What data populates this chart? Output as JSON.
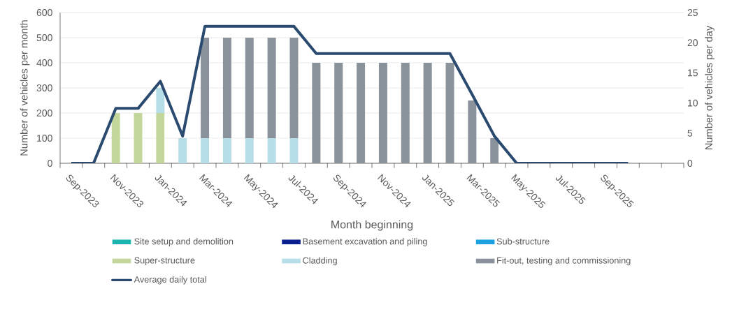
{
  "chart_data": {
    "type": "bar",
    "stacked": true,
    "xlabel": "Month beginning",
    "ylabel": "Number of vehicles per month",
    "y2label": "Number of vehicles per day",
    "categories": [
      "Sep-2023",
      null,
      "Nov-2023",
      null,
      "Jan-2024",
      null,
      "Mar-2024",
      null,
      "May-2024",
      null,
      "Jul-2024",
      null,
      "Sep-2024",
      null,
      "Nov-2024",
      null,
      "Jan-2025",
      null,
      "Mar-2025",
      null,
      "May-2025",
      null,
      "Jul-2025",
      null,
      "Sep-2025",
      null,
      null,
      null
    ],
    "ylim": [
      0,
      600
    ],
    "yticks": [
      0,
      100,
      200,
      300,
      400,
      500,
      600
    ],
    "y2lim": [
      0,
      25
    ],
    "y2ticks": [
      0,
      5,
      10,
      15,
      20,
      25
    ],
    "grid": "y",
    "legend": "bottom",
    "series": [
      {
        "name": "Site setup and demolition",
        "color": "#1bb3ae",
        "values": [
          null,
          null,
          null,
          null,
          null,
          null,
          null,
          null,
          null,
          null,
          null,
          null,
          null,
          null,
          null,
          null,
          null,
          null,
          null,
          null,
          null,
          null,
          null,
          null,
          null,
          null,
          null,
          null
        ]
      },
      {
        "name": "Basement excavation and piling",
        "color": "#0a1f8f",
        "values": [
          null,
          null,
          null,
          null,
          null,
          null,
          null,
          null,
          null,
          null,
          null,
          null,
          null,
          null,
          null,
          null,
          null,
          null,
          null,
          null,
          null,
          null,
          null,
          null,
          null,
          null,
          null,
          null
        ]
      },
      {
        "name": "Sub-structure",
        "color": "#1ba1e2",
        "values": [
          null,
          null,
          null,
          null,
          null,
          null,
          null,
          null,
          null,
          null,
          null,
          null,
          null,
          null,
          null,
          null,
          null,
          null,
          null,
          null,
          null,
          null,
          null,
          null,
          null,
          null,
          null,
          null
        ]
      },
      {
        "name": "Super-structure",
        "color": "#c3d69b",
        "values": [
          null,
          null,
          200,
          200,
          200,
          null,
          null,
          null,
          null,
          null,
          null,
          null,
          null,
          null,
          null,
          null,
          null,
          null,
          null,
          null,
          null,
          null,
          null,
          null,
          null,
          null,
          null,
          null
        ]
      },
      {
        "name": "Cladding",
        "color": "#b7dee8",
        "values": [
          null,
          null,
          null,
          null,
          100,
          100,
          100,
          100,
          100,
          100,
          100,
          null,
          null,
          null,
          null,
          null,
          null,
          null,
          null,
          null,
          null,
          null,
          null,
          null,
          null,
          null,
          null,
          null
        ]
      },
      {
        "name": "Fit-out, testing and commissioning",
        "color": "#8a929b",
        "values": [
          null,
          null,
          null,
          null,
          null,
          null,
          400,
          400,
          400,
          400,
          400,
          400,
          400,
          400,
          400,
          400,
          400,
          400,
          250,
          100,
          null,
          null,
          null,
          null,
          null,
          null,
          null,
          null
        ]
      },
      {
        "name": "Average daily total",
        "type": "line",
        "axis": "y2",
        "color": "#2a4a70",
        "values": [
          0,
          0,
          9.1,
          9.1,
          13.6,
          4.5,
          22.7,
          22.7,
          22.7,
          22.7,
          22.7,
          18.2,
          18.2,
          18.2,
          18.2,
          18.2,
          18.2,
          18.2,
          11.4,
          4.5,
          0,
          0,
          0,
          0,
          0,
          0,
          null,
          null
        ]
      }
    ]
  }
}
